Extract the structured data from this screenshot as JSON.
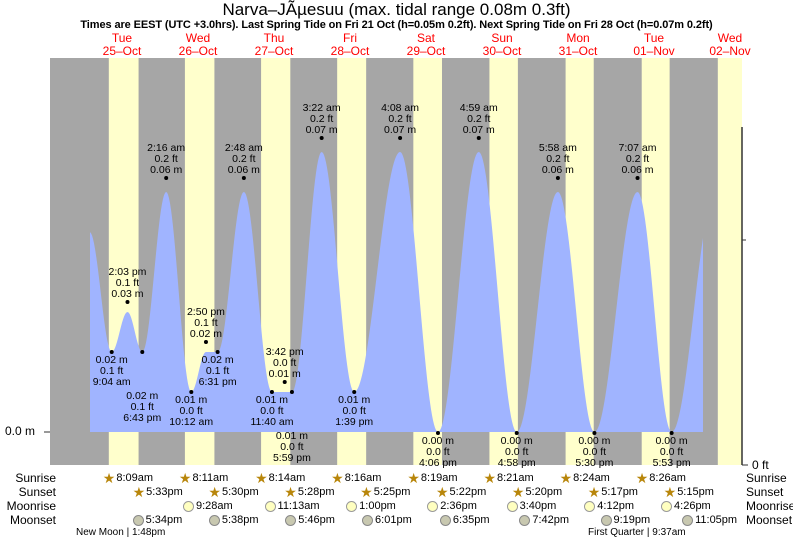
{
  "title": "Narva–JÃµesuu (max. tidal range 0.08m 0.3ft)",
  "subtitle": "Times are EEST (UTC +3.0hrs). Last Spring Tide on Fri 21 Oct (h=0.05m 0.2ft). Next Spring Tide on Fri 28 Oct (h=0.07m 0.2ft)",
  "colors": {
    "water": "#a0b4ff",
    "night": "#a6a6a6",
    "day": "#ffffcc",
    "dayLabel": "#ff0000",
    "sun": "#b8860b"
  },
  "chart_data": {
    "type": "area",
    "title": "Narva–JÃµesuu (max. tidal range 0.08m 0.3ft)",
    "left_axis_label": "0.0 m",
    "right_axis_label": "0 ft",
    "days": [
      {
        "dow": "Tue",
        "date": "25–Oct"
      },
      {
        "dow": "Wed",
        "date": "26–Oct"
      },
      {
        "dow": "Thu",
        "date": "27–Oct"
      },
      {
        "dow": "Fri",
        "date": "28–Oct"
      },
      {
        "dow": "Sat",
        "date": "29–Oct"
      },
      {
        "dow": "Sun",
        "date": "30–Oct"
      },
      {
        "dow": "Mon",
        "date": "31–Oct"
      },
      {
        "dow": "Tue",
        "date": "01–Nov"
      },
      {
        "dow": "Wed",
        "date": "02–Nov"
      }
    ],
    "tides": [
      {
        "day": 0,
        "time": "9:04 am",
        "type": "low",
        "m": "0.02 m",
        "ft": "0.1 ft",
        "v": 0.02
      },
      {
        "day": 0,
        "time": "2:03 pm",
        "type": "high",
        "m": "0.03 m",
        "ft": "0.1 ft",
        "v": 0.03
      },
      {
        "day": 0,
        "time": "6:43 pm",
        "type": "low",
        "m": "0.02 m",
        "ft": "0.1 ft",
        "v": 0.02
      },
      {
        "day": 1,
        "time": "2:16 am",
        "type": "high",
        "m": "0.06 m",
        "ft": "0.2 ft",
        "v": 0.06
      },
      {
        "day": 1,
        "time": "10:12 am",
        "type": "low",
        "m": "0.01 m",
        "ft": "0.0 ft",
        "v": 0.01
      },
      {
        "day": 1,
        "time": "2:50 pm",
        "type": "high",
        "m": "0.02 m",
        "ft": "0.1 ft",
        "v": 0.02
      },
      {
        "day": 1,
        "time": "6:31 pm",
        "type": "low",
        "m": "0.02 m",
        "ft": "0.1 ft",
        "v": 0.02
      },
      {
        "day": 2,
        "time": "2:48 am",
        "type": "high",
        "m": "0.06 m",
        "ft": "0.2 ft",
        "v": 0.06
      },
      {
        "day": 2,
        "time": "11:40 am",
        "type": "low",
        "m": "0.01 m",
        "ft": "0.0 ft",
        "v": 0.01
      },
      {
        "day": 2,
        "time": "3:42 pm",
        "type": "high",
        "m": "0.01 m",
        "ft": "0.0 ft",
        "v": 0.01
      },
      {
        "day": 2,
        "time": "5:59 pm",
        "type": "low",
        "m": "0.01 m",
        "ft": "0.0 ft",
        "v": 0.01
      },
      {
        "day": 3,
        "time": "3:22 am",
        "type": "high",
        "m": "0.07 m",
        "ft": "0.2 ft",
        "v": 0.07
      },
      {
        "day": 3,
        "time": "1:39 pm",
        "type": "low",
        "m": "0.01 m",
        "ft": "0.0 ft",
        "v": 0.01
      },
      {
        "day": 4,
        "time": "4:08 am",
        "type": "high",
        "m": "0.07 m",
        "ft": "0.2 ft",
        "v": 0.07
      },
      {
        "day": 4,
        "time": "4:06 pm",
        "type": "low",
        "m": "0.00 m",
        "ft": "0.0 ft",
        "v": 0.0
      },
      {
        "day": 5,
        "time": "4:59 am",
        "type": "high",
        "m": "0.07 m",
        "ft": "0.2 ft",
        "v": 0.07
      },
      {
        "day": 5,
        "time": "4:58 pm",
        "type": "low",
        "m": "0.00 m",
        "ft": "0.0 ft",
        "v": 0.0
      },
      {
        "day": 6,
        "time": "5:58 am",
        "type": "high",
        "m": "0.06 m",
        "ft": "0.2 ft",
        "v": 0.06
      },
      {
        "day": 6,
        "time": "5:30 pm",
        "type": "low",
        "m": "0.00 m",
        "ft": "0.0 ft",
        "v": 0.0
      },
      {
        "day": 7,
        "time": "7:07 am",
        "type": "high",
        "m": "0.06 m",
        "ft": "0.2 ft",
        "v": 0.06
      },
      {
        "day": 7,
        "time": "5:53 pm",
        "type": "low",
        "m": "0.00 m",
        "ft": "0.0 ft",
        "v": 0.0
      }
    ]
  },
  "rows": {
    "sunrise": "Sunrise",
    "sunset": "Sunset",
    "moonrise": "Moonrise",
    "moonset": "Moonset"
  },
  "sunrise": [
    "8:09am",
    "8:11am",
    "8:14am",
    "8:16am",
    "8:19am",
    "8:21am",
    "8:24am",
    "8:26am"
  ],
  "sunset": [
    "5:33pm",
    "5:30pm",
    "5:28pm",
    "5:25pm",
    "5:22pm",
    "5:20pm",
    "5:17pm",
    "5:15pm"
  ],
  "moonrise": [
    null,
    "9:28am",
    "11:13am",
    "1:00pm",
    "2:36pm",
    "3:40pm",
    "4:12pm",
    "4:26pm"
  ],
  "moonset": [
    "5:34pm",
    "5:38pm",
    "5:46pm",
    "6:01pm",
    "6:35pm",
    "7:42pm",
    "9:19pm",
    "11:05pm"
  ],
  "next_sunrise": "8:28am",
  "phases": [
    {
      "day": 0,
      "label": "New Moon | 1:48pm"
    },
    {
      "day": 7,
      "label": "First Quarter | 9:37am"
    }
  ]
}
